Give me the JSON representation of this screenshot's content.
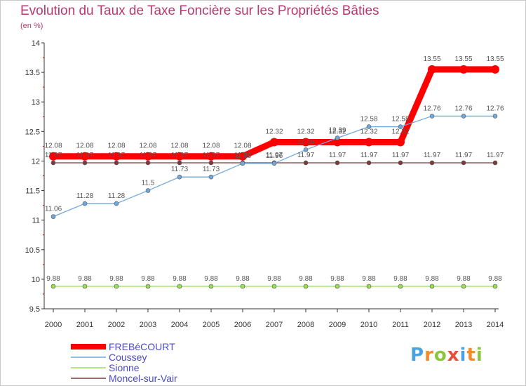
{
  "chart_data": {
    "type": "line",
    "title": "Evolution du Taux de Taxe Foncière sur les Propriétés Bâties",
    "ylabel": "(en %)",
    "xlabel": "",
    "ylim": [
      9.5,
      14
    ],
    "yticks": [
      "9.5",
      "10",
      "10.5",
      "11",
      "11.5",
      "12",
      "12.5",
      "13",
      "13.5",
      "14"
    ],
    "x": [
      "2000",
      "2001",
      "2002",
      "2003",
      "2004",
      "2005",
      "2006",
      "2007",
      "2008",
      "2009",
      "2010",
      "2011",
      "2012",
      "2013",
      "2014"
    ],
    "series": [
      {
        "name": "FREBéCOURT",
        "color": "#ff0000",
        "values": [
          12.08,
          12.08,
          12.08,
          12.08,
          12.08,
          12.08,
          12.08,
          12.32,
          12.32,
          12.32,
          12.32,
          12.32,
          13.55,
          13.55,
          13.55
        ],
        "labels": [
          "12.08",
          "12.08",
          "12.08",
          "12.08",
          "12.08",
          "12.08",
          "12.08",
          "12.32",
          "12.32",
          "12.32",
          "12.32",
          "12.32",
          "13.55",
          "13.55",
          "13.55"
        ]
      },
      {
        "name": "Coussey",
        "color": "#6fa8dc",
        "values": [
          11.06,
          11.28,
          11.28,
          11.5,
          11.73,
          11.73,
          11.96,
          11.96,
          12.19,
          12.39,
          12.58,
          12.58,
          12.76,
          12.76,
          12.76
        ],
        "labels": [
          "11.06",
          "11.28",
          "11.28",
          "11.5",
          "11.73",
          "11.73",
          "11.96",
          "11.96",
          "12.19",
          "12.39",
          "12.58",
          "12.58",
          "12.76",
          "12.76",
          "12.76"
        ]
      },
      {
        "name": "Sionne",
        "color": "#99dd55",
        "values": [
          9.88,
          9.88,
          9.88,
          9.88,
          9.88,
          9.88,
          9.88,
          9.88,
          9.88,
          9.88,
          9.88,
          9.88,
          9.88,
          9.88,
          9.88
        ],
        "labels": [
          "9.88",
          "9.88",
          "9.88",
          "9.88",
          "9.88",
          "9.88",
          "9.88",
          "9.88",
          "9.88",
          "9.88",
          "9.88",
          "9.88",
          "9.88",
          "9.88",
          "9.88"
        ]
      },
      {
        "name": "Moncel-sur-Vair",
        "color": "#7a3b3b",
        "values": [
          11.97,
          11.97,
          11.97,
          11.97,
          11.97,
          11.97,
          11.97,
          11.97,
          11.97,
          11.97,
          11.97,
          11.97,
          11.97,
          11.97,
          11.97
        ],
        "labels": [
          "11.97",
          "11.97",
          "11.97",
          "11.97",
          "11.97",
          "11.97",
          "11.97",
          "11.97",
          "11.97",
          "11.97",
          "11.97",
          "11.97",
          "11.97",
          "11.97",
          "11.97"
        ]
      }
    ],
    "legend": "bottom-left",
    "grid": false
  },
  "brand": {
    "letters": [
      "P",
      "r",
      "o",
      "x",
      "i",
      "t",
      "i"
    ],
    "colors": [
      "#4aa3df",
      "#f28c28",
      "#8cc63f",
      "#e84c3d"
    ]
  }
}
